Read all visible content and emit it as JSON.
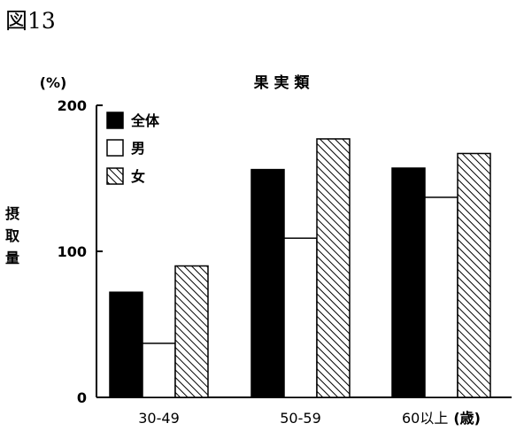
{
  "figure_label": "図13",
  "chart_data": {
    "type": "bar",
    "title": "果 実 類",
    "ylabel": "摂取量",
    "yunit": "(%)",
    "ylim": [
      0,
      200
    ],
    "yticks": [
      0,
      100,
      200
    ],
    "categories": [
      "30-49",
      "50-59",
      "60以上"
    ],
    "category_suffix": "(歳)",
    "series": [
      {
        "name": "全体",
        "values": [
          72,
          156,
          157
        ],
        "fill": "solid",
        "color": "#000000"
      },
      {
        "name": "男",
        "values": [
          37,
          109,
          137
        ],
        "fill": "white",
        "color": "#ffffff"
      },
      {
        "name": "女",
        "values": [
          90,
          177,
          167
        ],
        "fill": "hatch",
        "color": "#000000"
      }
    ],
    "grid": false,
    "legend_position": "top-left"
  }
}
